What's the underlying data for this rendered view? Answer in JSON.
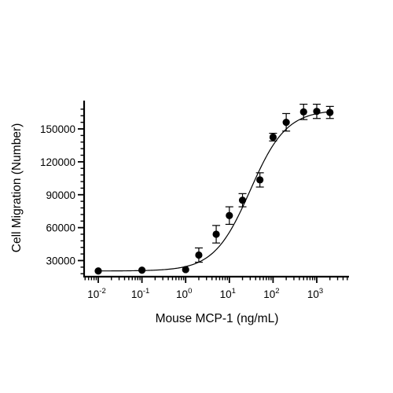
{
  "chart_data": {
    "type": "scatter",
    "xlabel": "Mouse MCP-1 (ng/mL)",
    "ylabel": "Cell Migration (Number)",
    "x_scale": "log",
    "xlim": [
      0.01,
      2000
    ],
    "ylim": [
      15000,
      172000
    ],
    "x_ticks": [
      {
        "value": 0.01,
        "base": "10",
        "exp": "-2"
      },
      {
        "value": 0.1,
        "base": "10",
        "exp": "-1"
      },
      {
        "value": 1,
        "base": "10",
        "exp": "0"
      },
      {
        "value": 10,
        "base": "10",
        "exp": "1"
      },
      {
        "value": 100,
        "base": "10",
        "exp": "2"
      },
      {
        "value": 1000,
        "base": "10",
        "exp": "3"
      }
    ],
    "y_ticks": [
      {
        "value": 30000,
        "label": "30000"
      },
      {
        "value": 60000,
        "label": "60000"
      },
      {
        "value": 90000,
        "label": "90000"
      },
      {
        "value": 120000,
        "label": "120000"
      },
      {
        "value": 150000,
        "label": "150000"
      }
    ],
    "points": [
      {
        "x": 0.01,
        "y": 20500,
        "err": 0
      },
      {
        "x": 0.1,
        "y": 21200,
        "err": 0
      },
      {
        "x": 1,
        "y": 21800,
        "err": 0
      },
      {
        "x": 2,
        "y": 35000,
        "err": 6500
      },
      {
        "x": 5,
        "y": 54000,
        "err": 8000
      },
      {
        "x": 10,
        "y": 71000,
        "err": 8000
      },
      {
        "x": 20,
        "y": 85000,
        "err": 6000
      },
      {
        "x": 50,
        "y": 103500,
        "err": 6500
      },
      {
        "x": 100,
        "y": 142500,
        "err": 3500
      },
      {
        "x": 200,
        "y": 156000,
        "err": 8000
      },
      {
        "x": 500,
        "y": 165500,
        "err": 7000
      },
      {
        "x": 1000,
        "y": 166000,
        "err": 6500
      },
      {
        "x": 2000,
        "y": 165000,
        "err": 5500
      }
    ],
    "fit_curve": {
      "model": "4PL",
      "bottom": 20500,
      "top": 167500,
      "ec50": 30,
      "hill": 1.05
    },
    "grid": false,
    "legend": "none",
    "color": "#000000"
  }
}
